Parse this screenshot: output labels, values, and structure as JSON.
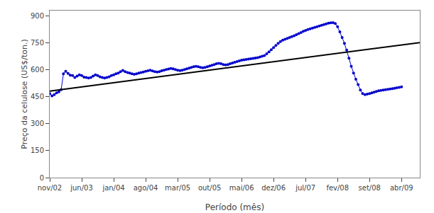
{
  "chart_data": {
    "type": "line",
    "xlabel": "Período (mês)",
    "ylabel": "Preço da celulose (US$/ton.)",
    "xlim": [
      0,
      81
    ],
    "xticks": [
      {
        "value": 0,
        "label": "nov/02"
      },
      {
        "value": 7,
        "label": "jun/03"
      },
      {
        "value": 14,
        "label": "jan/04"
      },
      {
        "value": 21,
        "label": "ago/04"
      },
      {
        "value": 28,
        "label": "mar/05"
      },
      {
        "value": 35,
        "label": "out/05"
      },
      {
        "value": 42,
        "label": "mai/06"
      },
      {
        "value": 49,
        "label": "dez/06"
      },
      {
        "value": 56,
        "label": "jul/07"
      },
      {
        "value": 63,
        "label": "fev/08"
      },
      {
        "value": 70,
        "label": "set/08"
      },
      {
        "value": 77,
        "label": "abr/09"
      }
    ],
    "ylim": [
      0,
      930
    ],
    "yticks": [
      0,
      150,
      300,
      450,
      600,
      750,
      900
    ],
    "grid": false,
    "series": [
      {
        "color": "#0000CC",
        "marker": "circle",
        "line_style": "solid",
        "x": [
          0,
          0.5,
          1,
          1.5,
          2,
          2.5,
          3,
          3.5,
          4,
          4.5,
          5,
          5.5,
          6,
          6.5,
          7,
          7.5,
          8,
          8.5,
          9,
          9.5,
          10,
          10.5,
          11,
          11.5,
          12,
          12.5,
          13,
          13.5,
          14,
          14.5,
          15,
          15.5,
          16,
          16.5,
          17,
          17.5,
          18,
          18.5,
          19,
          19.5,
          20,
          20.5,
          21,
          21.5,
          22,
          22.5,
          23,
          23.5,
          24,
          24.5,
          25,
          25.5,
          26,
          26.5,
          27,
          27.5,
          28,
          28.5,
          29,
          29.5,
          30,
          30.5,
          31,
          31.5,
          32,
          32.5,
          33,
          33.5,
          34,
          34.5,
          35,
          35.5,
          36,
          36.5,
          37,
          37.5,
          38,
          38.5,
          39,
          39.5,
          40,
          40.5,
          41,
          41.5,
          42,
          42.5,
          43,
          43.5,
          44,
          44.5,
          45,
          45.5,
          46,
          46.5,
          47,
          47.5,
          48,
          48.5,
          49,
          49.5,
          50,
          50.5,
          51,
          51.5,
          52,
          52.5,
          53,
          53.5,
          54,
          54.5,
          55,
          55.5,
          56,
          56.5,
          57,
          57.5,
          58,
          58.5,
          59,
          59.5,
          60,
          60.5,
          61,
          61.5,
          62,
          62.5,
          63,
          63.5,
          64,
          64.5,
          65,
          65.5,
          66,
          66.5,
          67,
          67.5,
          68,
          68.5,
          69,
          69.5,
          70,
          70.5,
          71,
          71.5,
          72,
          72.5,
          73,
          73.5,
          74,
          74.5,
          75,
          75.5,
          76,
          76.5,
          77
        ],
        "values": [
          468,
          455,
          462,
          472,
          478,
          490,
          578,
          592,
          580,
          570,
          568,
          558,
          565,
          572,
          568,
          560,
          558,
          555,
          558,
          565,
          572,
          568,
          562,
          558,
          555,
          558,
          562,
          568,
          572,
          578,
          582,
          590,
          597,
          590,
          585,
          582,
          578,
          575,
          578,
          582,
          585,
          588,
          592,
          595,
          598,
          594,
          590,
          588,
          590,
          595,
          598,
          602,
          605,
          608,
          606,
          602,
          598,
          596,
          598,
          602,
          606,
          610,
          614,
          618,
          620,
          618,
          614,
          612,
          614,
          618,
          622,
          626,
          630,
          634,
          636,
          634,
          630,
          628,
          630,
          634,
          638,
          642,
          646,
          650,
          654,
          656,
          658,
          660,
          662,
          664,
          666,
          668,
          672,
          676,
          680,
          690,
          700,
          712,
          724,
          736,
          748,
          758,
          765,
          770,
          775,
          780,
          785,
          790,
          796,
          802,
          808,
          815,
          820,
          825,
          829,
          832,
          836,
          840,
          844,
          848,
          852,
          856,
          860,
          862,
          863,
          858,
          840,
          812,
          780,
          748,
          710,
          665,
          620,
          582,
          548,
          518,
          488,
          468,
          462,
          465,
          468,
          472,
          476,
          480,
          484,
          486,
          488,
          490,
          492,
          494,
          496,
          498,
          500,
          502,
          505
        ]
      },
      {
        "color": "#000000",
        "line_style": "solid",
        "x": [
          0,
          81
        ],
        "values": [
          482,
          752
        ]
      }
    ]
  }
}
